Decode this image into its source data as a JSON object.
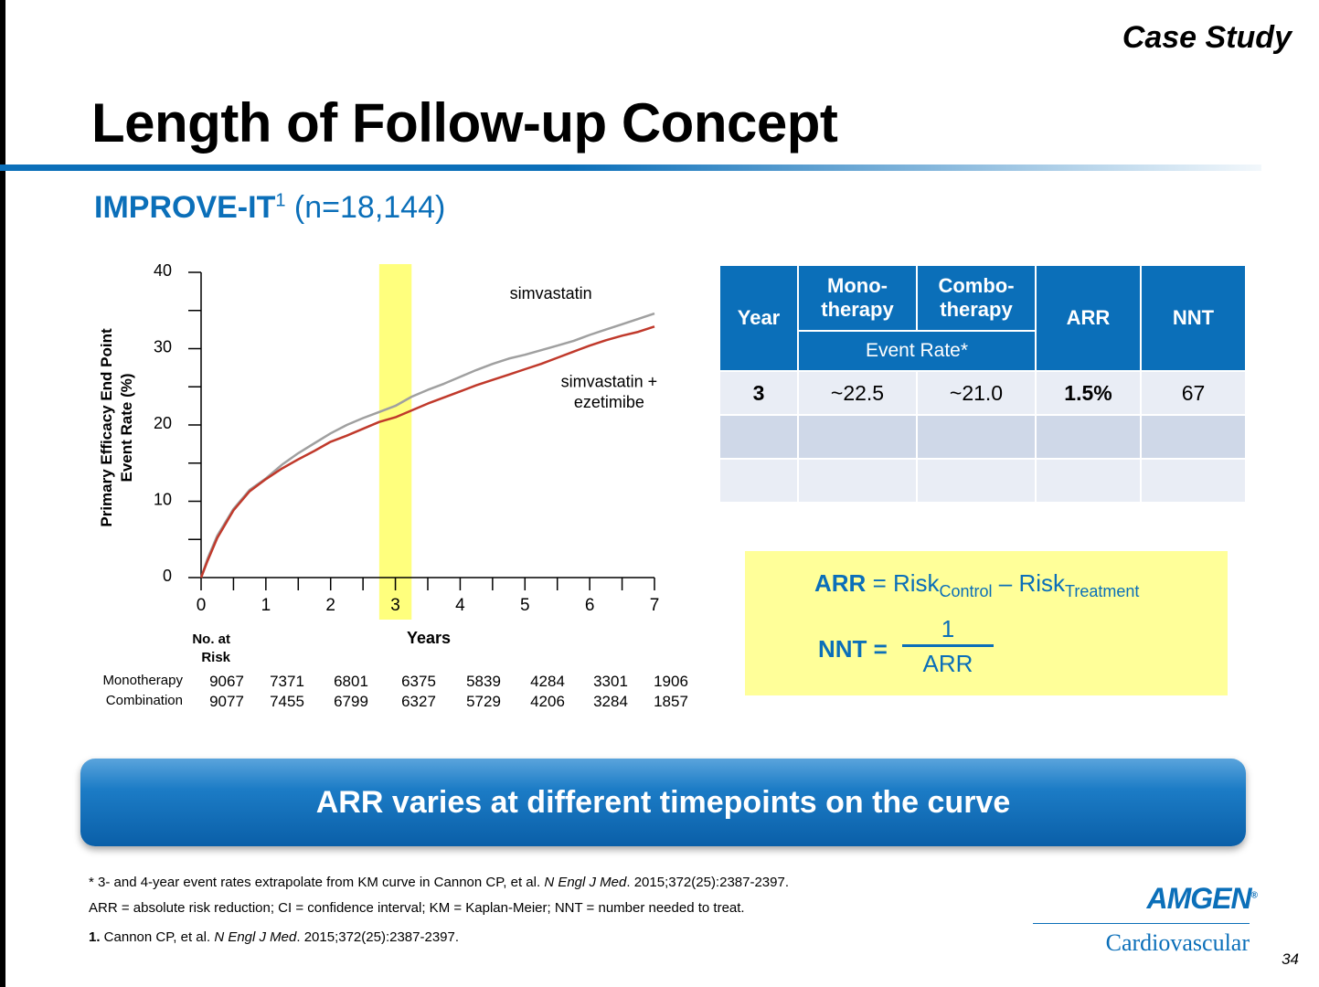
{
  "header": {
    "case_study": "Case Study",
    "title": "Length of Follow-up Concept",
    "subtitle_bold": "IMPROVE-IT",
    "subtitle_sup": "1",
    "subtitle_rest": " (n=18,144)"
  },
  "chart_data": {
    "type": "line",
    "xlabel": "Years",
    "ylabel_line1": "Primary Efficacy End Point",
    "ylabel_line2": "Event Rate (%)",
    "xlim": [
      0,
      7
    ],
    "ylim": [
      0,
      40
    ],
    "x_ticks": [
      "0",
      "1",
      "2",
      "3",
      "4",
      "5",
      "6",
      "7"
    ],
    "y_ticks": [
      "0",
      "10",
      "20",
      "30",
      "40"
    ],
    "highlight_band_x": [
      2.75,
      3.25
    ],
    "series": [
      {
        "name": "simvastatin",
        "color": "#a0a0a0",
        "x": [
          0,
          0.1,
          0.25,
          0.5,
          0.75,
          1,
          1.25,
          1.5,
          1.75,
          2,
          2.25,
          2.5,
          2.75,
          3,
          3.25,
          3.5,
          3.75,
          4,
          4.25,
          4.5,
          4.75,
          5,
          5.25,
          5.5,
          5.75,
          6,
          6.25,
          6.5,
          6.75,
          7
        ],
        "y": [
          0,
          2.5,
          5.5,
          9.0,
          11.5,
          13.0,
          14.8,
          16.3,
          17.6,
          18.9,
          20.0,
          20.9,
          21.7,
          22.5,
          23.7,
          24.6,
          25.4,
          26.3,
          27.2,
          28.0,
          28.7,
          29.2,
          29.8,
          30.4,
          31.0,
          31.8,
          32.5,
          33.2,
          33.9,
          34.6
        ]
      },
      {
        "name": "simvastatin + ezetimibe",
        "color": "#c0392b",
        "x": [
          0,
          0.1,
          0.25,
          0.5,
          0.75,
          1,
          1.25,
          1.5,
          1.75,
          2,
          2.25,
          2.5,
          2.75,
          3,
          3.25,
          3.5,
          3.75,
          4,
          4.25,
          4.5,
          4.75,
          5,
          5.25,
          5.5,
          5.75,
          6,
          6.25,
          6.5,
          6.75,
          7
        ],
        "y": [
          0,
          2.2,
          5.2,
          8.8,
          11.3,
          12.9,
          14.3,
          15.5,
          16.6,
          17.8,
          18.6,
          19.5,
          20.4,
          21.0,
          21.9,
          22.8,
          23.6,
          24.4,
          25.2,
          25.9,
          26.6,
          27.3,
          28.0,
          28.8,
          29.6,
          30.4,
          31.1,
          31.7,
          32.2,
          32.9
        ]
      }
    ],
    "annotations": [
      {
        "text": "simvastatin",
        "x": 5.4,
        "y": 36.5
      },
      {
        "text": "simvastatin +",
        "x": 6.3,
        "y": 25.0
      },
      {
        "text": "ezetimibe",
        "x": 6.3,
        "y": 22.3
      }
    ]
  },
  "risk_table": {
    "header_line1": "No. at",
    "header_line2": "Risk",
    "rows": [
      {
        "label": "Monotherapy",
        "values": [
          "9067",
          "7371",
          "6801",
          "6375",
          "5839",
          "4284",
          "3301",
          "1906"
        ]
      },
      {
        "label": "Combination",
        "values": [
          "9077",
          "7455",
          "6799",
          "6327",
          "5729",
          "4206",
          "3284",
          "1857"
        ]
      }
    ]
  },
  "event_table": {
    "headers": {
      "year": "Year",
      "mono_1": "Mono-",
      "mono_2": "therapy",
      "combo_1": "Combo-",
      "combo_2": "therapy",
      "arr": "ARR",
      "nnt": "NNT",
      "event_rate": "Event Rate*"
    },
    "rows": [
      {
        "year": "3",
        "mono": "~22.5",
        "combo": "~21.0",
        "arr": "1.5%",
        "nnt": "67"
      },
      {
        "year": "",
        "mono": "",
        "combo": "",
        "arr": "",
        "nnt": ""
      },
      {
        "year": "",
        "mono": "",
        "combo": "",
        "arr": "",
        "nnt": ""
      }
    ]
  },
  "formula": {
    "arr_label": "ARR",
    "arr_eq": " = Risk",
    "arr_sub1": "Control",
    "arr_minus": " – Risk",
    "arr_sub2": "Treatment",
    "nnt_label": "NNT =",
    "numerator": "1",
    "denominator": "ARR"
  },
  "banner": {
    "text": "ARR varies at different timepoints on the curve"
  },
  "footnotes": {
    "note1_pre": "* 3- and 4-year event rates extrapolate from KM curve in Cannon CP, et al. ",
    "note1_journal": "N Engl J Med",
    "note1_post": ". 2015;372(25):2387-2397.",
    "note2": "ARR = absolute risk reduction; CI = confidence interval; KM = Kaplan-Meier; NNT = number needed to treat.",
    "note3_num": "1.",
    "note3_pre": " Cannon CP, et al. ",
    "note3_journal": "N Engl J Med",
    "note3_post": ". 2015;372(25):2387-2397."
  },
  "logo": {
    "brand": "AMGEN",
    "reg": "®",
    "division": "Cardiovascular"
  },
  "page_number": "34"
}
